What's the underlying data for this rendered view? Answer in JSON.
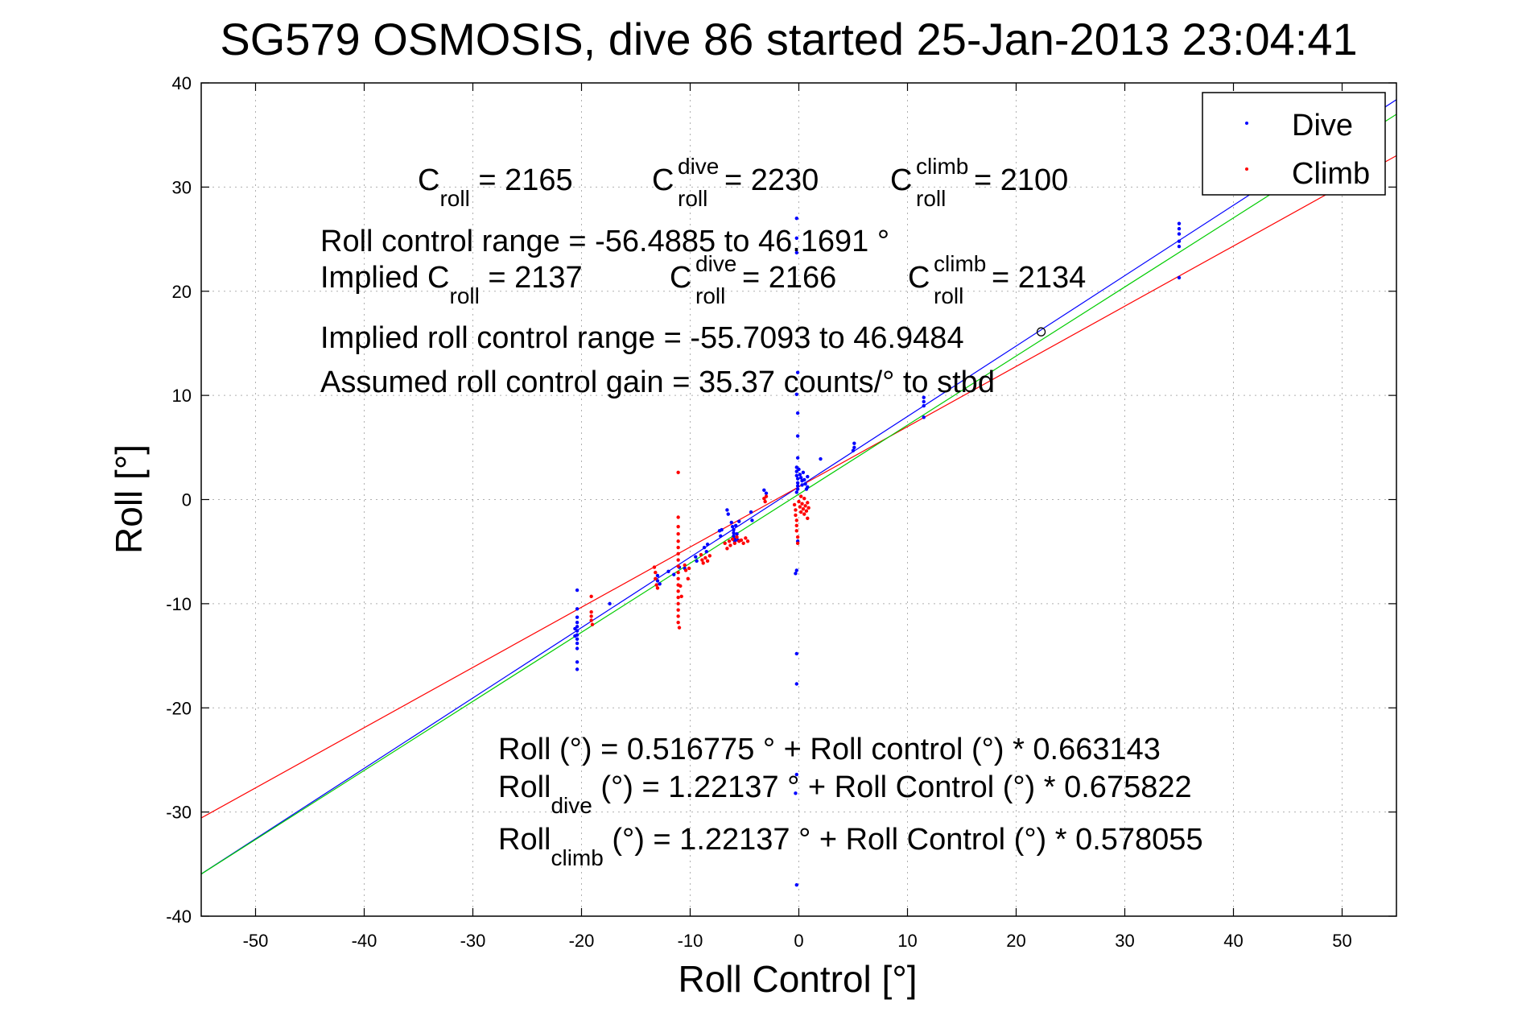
{
  "chart_data": {
    "type": "scatter",
    "title": "SG579 OSMOSIS, dive 86 started 25-Jan-2013 23:04:41",
    "xlabel": "Roll Control [°]",
    "ylabel": "Roll [°]",
    "xlim": [
      -55,
      55
    ],
    "ylim": [
      -40,
      40
    ],
    "xticks": [
      "-50",
      "-40",
      "-30",
      "-20",
      "-10",
      "0",
      "10",
      "20",
      "30",
      "40",
      "50"
    ],
    "yticks": [
      "40",
      "30",
      "20",
      "10",
      "0",
      "-10",
      "-20",
      "-30",
      "-40"
    ],
    "grid": true,
    "legend_position": "top-right",
    "legend": [
      {
        "label": "Dive",
        "color": "#0000ff"
      },
      {
        "label": "Climb",
        "color": "#ff0000"
      }
    ],
    "series": [
      {
        "name": "Dive",
        "color": "#0000ff",
        "points": [
          [
            -20.4,
            -8.7
          ],
          [
            -20.4,
            -10.5
          ],
          [
            -20.4,
            -11.3
          ],
          [
            -20.4,
            -11.8
          ],
          [
            -20.4,
            -12.2
          ],
          [
            -20.4,
            -12.6
          ],
          [
            -20.4,
            -13.0
          ],
          [
            -20.4,
            -13.4
          ],
          [
            -20.4,
            -13.8
          ],
          [
            -20.4,
            -14.3
          ],
          [
            -20.4,
            -15.6
          ],
          [
            -20.4,
            -16.3
          ],
          [
            -20.6,
            -12.4
          ],
          [
            -20.6,
            -13.1
          ],
          [
            -17.4,
            -10.0
          ],
          [
            -13.0,
            -7.3
          ],
          [
            -13.0,
            -7.8
          ],
          [
            -12.8,
            -8.1
          ],
          [
            -12.0,
            -6.9
          ],
          [
            -11.5,
            -7.2
          ],
          [
            -11.0,
            -6.5
          ],
          [
            -10.5,
            -6.6
          ],
          [
            -9.5,
            -5.5
          ],
          [
            -9.4,
            -5.9
          ],
          [
            -8.7,
            -4.6
          ],
          [
            -8.5,
            -5.0
          ],
          [
            -8.4,
            -4.3
          ],
          [
            -7.3,
            -3.0
          ],
          [
            -7.2,
            -3.5
          ],
          [
            -7.1,
            -2.9
          ],
          [
            -6.6,
            -1.0
          ],
          [
            -6.5,
            -1.4
          ],
          [
            -6.2,
            -2.2
          ],
          [
            -6.1,
            -2.6
          ],
          [
            -6.0,
            -2.9
          ],
          [
            -6.0,
            -3.2
          ],
          [
            -6.0,
            -3.5
          ],
          [
            -5.9,
            -3.8
          ],
          [
            -5.9,
            -4.0
          ],
          [
            -5.8,
            -2.5
          ],
          [
            -5.7,
            -3.3
          ],
          [
            -5.6,
            -3.9
          ],
          [
            -5.5,
            -2.1
          ],
          [
            -4.4,
            -1.2
          ],
          [
            -4.3,
            -2.0
          ],
          [
            -3.2,
            0.9
          ],
          [
            -3.0,
            0.6
          ],
          [
            -0.2,
            -14.8
          ],
          [
            -0.2,
            -17.7
          ],
          [
            -0.3,
            -28.2
          ],
          [
            -0.2,
            -37.0
          ],
          [
            -0.2,
            -26.4
          ],
          [
            -0.2,
            -6.8
          ],
          [
            -0.1,
            -4.0
          ],
          [
            -0.3,
            -7.1
          ],
          [
            -0.2,
            27.0
          ],
          [
            -0.2,
            25.1
          ],
          [
            -0.2,
            23.7
          ],
          [
            -0.1,
            8.3
          ],
          [
            -0.1,
            12.2
          ],
          [
            -0.2,
            10.1
          ],
          [
            -0.1,
            6.1
          ],
          [
            -0.1,
            4.0
          ],
          [
            -0.2,
            3.1
          ],
          [
            -0.2,
            2.7
          ],
          [
            -0.2,
            2.3
          ],
          [
            -0.1,
            2.0
          ],
          [
            -0.1,
            1.6
          ],
          [
            -0.1,
            1.3
          ],
          [
            -0.1,
            1.0
          ],
          [
            -0.2,
            0.7
          ],
          [
            0.0,
            2.9
          ],
          [
            0.1,
            2.4
          ],
          [
            0.2,
            2.1
          ],
          [
            0.3,
            1.8
          ],
          [
            0.3,
            1.4
          ],
          [
            0.4,
            2.6
          ],
          [
            0.5,
            1.9
          ],
          [
            0.6,
            1.5
          ],
          [
            0.8,
            2.2
          ],
          [
            0.8,
            1.2
          ],
          [
            0.7,
            1.0
          ],
          [
            2.0,
            3.9
          ],
          [
            5.0,
            4.7
          ],
          [
            5.1,
            5.0
          ],
          [
            5.1,
            5.4
          ],
          [
            11.5,
            9.0
          ],
          [
            11.5,
            9.4
          ],
          [
            11.5,
            9.8
          ],
          [
            11.5,
            7.9
          ],
          [
            35.0,
            26.5
          ],
          [
            35.0,
            26.0
          ],
          [
            35.0,
            25.5
          ],
          [
            35.0,
            24.8
          ],
          [
            35.0,
            24.3
          ],
          [
            35.0,
            21.3
          ]
        ]
      },
      {
        "name": "Climb",
        "color": "#ff0000",
        "points": [
          [
            -19.1,
            -9.3
          ],
          [
            -19.1,
            -10.8
          ],
          [
            -19.1,
            -11.2
          ],
          [
            -19.1,
            -11.6
          ],
          [
            -19.0,
            -12.0
          ],
          [
            -13.3,
            -6.5
          ],
          [
            -13.2,
            -7.0
          ],
          [
            -13.2,
            -7.6
          ],
          [
            -13.1,
            -8.2
          ],
          [
            -13.0,
            -8.5
          ],
          [
            -11.1,
            2.6
          ],
          [
            -11.1,
            -1.7
          ],
          [
            -11.1,
            -2.6
          ],
          [
            -11.1,
            -3.3
          ],
          [
            -11.1,
            -4.0
          ],
          [
            -11.1,
            -4.6
          ],
          [
            -11.1,
            -5.2
          ],
          [
            -11.1,
            -5.8
          ],
          [
            -11.1,
            -6.4
          ],
          [
            -11.1,
            -7.0
          ],
          [
            -11.1,
            -7.6
          ],
          [
            -11.1,
            -8.2
          ],
          [
            -11.1,
            -8.8
          ],
          [
            -11.1,
            -9.4
          ],
          [
            -11.1,
            -10.0
          ],
          [
            -11.1,
            -10.6
          ],
          [
            -11.1,
            -11.2
          ],
          [
            -11.1,
            -11.8
          ],
          [
            -11.0,
            -12.3
          ],
          [
            -10.9,
            -8.3
          ],
          [
            -10.8,
            -9.3
          ],
          [
            -10.5,
            -6.3
          ],
          [
            -10.4,
            -6.8
          ],
          [
            -10.2,
            -7.6
          ],
          [
            -10.1,
            -6.6
          ],
          [
            -9.0,
            -5.3
          ],
          [
            -8.9,
            -5.8
          ],
          [
            -8.8,
            -6.1
          ],
          [
            -8.6,
            -5.6
          ],
          [
            -8.4,
            -5.9
          ],
          [
            -8.2,
            -5.4
          ],
          [
            -6.8,
            -4.2
          ],
          [
            -6.6,
            -4.7
          ],
          [
            -6.4,
            -4.0
          ],
          [
            -6.3,
            -4.4
          ],
          [
            -6.1,
            -3.8
          ],
          [
            -5.9,
            -4.2
          ],
          [
            -5.7,
            -3.6
          ],
          [
            -5.5,
            -4.0
          ],
          [
            -5.3,
            -3.9
          ],
          [
            -5.1,
            -4.2
          ],
          [
            -4.9,
            -3.7
          ],
          [
            -4.7,
            -4.0
          ],
          [
            -3.2,
            0.1
          ],
          [
            -3.1,
            -0.2
          ],
          [
            -3.0,
            0.3
          ],
          [
            -0.4,
            -0.5
          ],
          [
            -0.3,
            -1.0
          ],
          [
            -0.3,
            -1.5
          ],
          [
            -0.2,
            -2.0
          ],
          [
            -0.2,
            -2.5
          ],
          [
            -0.2,
            -3.0
          ],
          [
            -0.1,
            -3.6
          ],
          [
            -0.1,
            -4.2
          ],
          [
            0.0,
            -0.2
          ],
          [
            0.1,
            -0.7
          ],
          [
            0.2,
            -1.2
          ],
          [
            0.2,
            0.3
          ],
          [
            0.3,
            -0.4
          ],
          [
            0.4,
            -0.9
          ],
          [
            0.5,
            -1.4
          ],
          [
            0.5,
            0.1
          ],
          [
            0.6,
            -0.6
          ],
          [
            0.7,
            -1.1
          ],
          [
            0.8,
            -0.3
          ],
          [
            0.8,
            -1.8
          ],
          [
            0.9,
            -0.8
          ]
        ]
      }
    ],
    "fit_lines": [
      {
        "color": "#0000ff",
        "intercept": 1.22137,
        "slope": 0.675822
      },
      {
        "color": "#ff0000",
        "intercept": 1.22137,
        "slope": 0.578055
      },
      {
        "color": "#00cc00",
        "intercept": 0.516775,
        "slope": 0.663143
      }
    ],
    "marker": {
      "x": 22.3,
      "y": 16.1
    }
  },
  "annotations": {
    "c_roll": {
      "base": "C",
      "sub": "roll",
      "rest": " = 2165"
    },
    "c_roll_dive": {
      "base": "C",
      "sup": "dive",
      "sub": "roll",
      "rest": " = 2230"
    },
    "c_roll_climb": {
      "base": "C",
      "sup": "climb",
      "sub": "roll",
      "rest": " = 2100"
    },
    "roll_control_range": "Roll control range = -56.4885 to 46.1691 °",
    "implied_c_roll": {
      "base": "Implied C",
      "sub": "roll",
      "rest": " = 2137"
    },
    "implied_c_roll_dive": {
      "base": "C",
      "sup": "dive",
      "sub": "roll",
      "rest": " = 2166"
    },
    "implied_c_roll_climb": {
      "base": "C",
      "sup": "climb",
      "sub": "roll",
      "rest": " = 2134"
    },
    "implied_range": "Implied roll control range = -55.7093 to 46.9484",
    "gain": "Assumed roll control gain = 35.37 counts/° to stbd",
    "eq_roll": "Roll (°) = 0.516775 ° + Roll control (°) * 0.663143",
    "eq_dive": {
      "base": "Roll",
      "sub": "dive",
      "rest": " (°) = 1.22137 ° + Roll Control (°) * 0.675822"
    },
    "eq_climb": {
      "base": "Roll",
      "sub": "climb",
      "rest": " (°) = 1.22137 ° + Roll Control (°) * 0.578055"
    }
  }
}
